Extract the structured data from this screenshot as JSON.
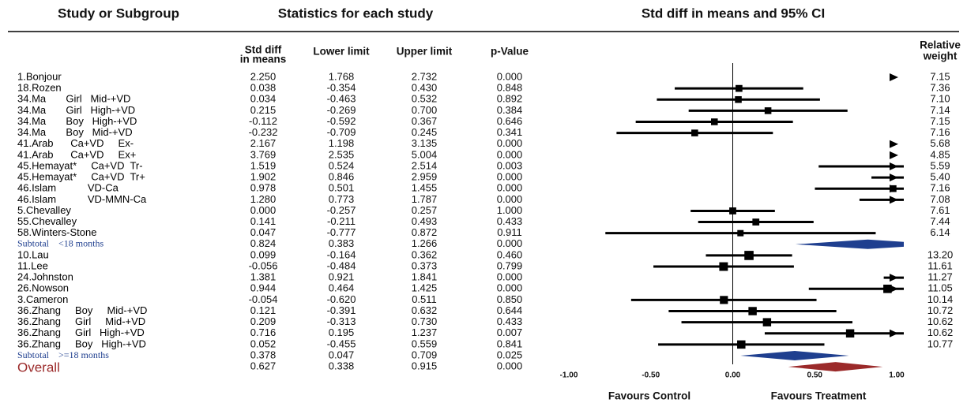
{
  "chart_data": {
    "type": "forest",
    "title_left": "Study or Subgroup",
    "title_middle": "Statistics for each study",
    "title_right": "Std diff in means and 95% CI",
    "column_headers": {
      "smd": [
        "Std diff",
        "in means"
      ],
      "lower": "Lower limit",
      "upper": "Upper limit",
      "p_value": "p-Value",
      "weight": [
        "Relative",
        "weight"
      ]
    },
    "categories": [
      "1.Bonjour",
      "18.Rozen",
      "34.Ma       Girl   Mid-+VD",
      "34.Ma       Girl   High-+VD",
      "34.Ma       Boy   High-+VD",
      "34.Ma       Boy   Mid-+VD",
      "41.Arab      Ca+VD     Ex-",
      "41.Arab      Ca+VD     Ex+",
      "45.Hemayat*     Ca+VD  Tr-",
      "45.Hemayat*     Ca+VD  Tr+",
      "46.Islam           VD-Ca",
      "46.Islam           VD-MMN-Ca",
      "5.Chevalley",
      "55.Chevalley",
      "58.Winters-Stone",
      "Subtotal    <18 months",
      "10.Lau",
      "11.Lee",
      "24.Johnston",
      "26.Nowson",
      "3.Cameron",
      "36.Zhang     Boy     Mid-+VD",
      "36.Zhang     Girl     Mid-+VD",
      "36.Zhang     Girl   High-+VD",
      "36.Zhang     Boy   High-+VD",
      "Subtotal    >=18 months",
      "Overall"
    ],
    "smd": {
      "values": [
        2.25,
        0.038,
        0.034,
        0.215,
        -0.112,
        -0.232,
        2.167,
        3.769,
        1.519,
        1.902,
        0.978,
        1.28,
        0.0,
        0.141,
        0.047,
        0.824,
        0.099,
        -0.056,
        1.381,
        0.944,
        -0.054,
        0.121,
        0.209,
        0.716,
        0.052,
        0.378,
        0.627
      ],
      "value_labels": [
        "2.250",
        "0.038",
        "0.034",
        "0.215",
        "-0.112",
        "-0.232",
        "2.167",
        "3.769",
        "1.519",
        "1.902",
        "0.978",
        "1.280",
        "0.000",
        "0.141",
        "0.047",
        "0.824",
        "0.099",
        "-0.056",
        "1.381",
        "0.944",
        "-0.054",
        "0.121",
        "0.209",
        "0.716",
        "0.052",
        "0.378",
        "0.627"
      ]
    },
    "lower": {
      "values": [
        1.768,
        -0.354,
        -0.463,
        -0.269,
        -0.592,
        -0.709,
        1.198,
        2.535,
        0.524,
        0.846,
        0.501,
        0.773,
        -0.257,
        -0.211,
        -0.777,
        0.383,
        -0.164,
        -0.484,
        0.921,
        0.464,
        -0.62,
        -0.391,
        -0.313,
        0.195,
        -0.455,
        0.047,
        0.338
      ],
      "value_labels": [
        "1.768",
        "-0.354",
        "-0.463",
        "-0.269",
        "-0.592",
        "-0.709",
        "1.198",
        "2.535",
        "0.524",
        "0.846",
        "0.501",
        "0.773",
        "-0.257",
        "-0.211",
        "-0.777",
        "0.383",
        "-0.164",
        "-0.484",
        "0.921",
        "0.464",
        "-0.620",
        "-0.391",
        "-0.313",
        "0.195",
        "-0.455",
        "0.047",
        "0.338"
      ]
    },
    "upper": {
      "values": [
        2.732,
        0.43,
        0.532,
        0.7,
        0.367,
        0.245,
        3.135,
        5.004,
        2.514,
        2.959,
        1.455,
        1.787,
        0.257,
        0.493,
        0.872,
        1.266,
        0.362,
        0.373,
        1.841,
        1.425,
        0.511,
        0.632,
        0.73,
        1.237,
        0.559,
        0.709,
        0.915
      ],
      "value_labels": [
        "2.732",
        "0.430",
        "0.532",
        "0.700",
        "0.367",
        "0.245",
        "3.135",
        "5.004",
        "2.514",
        "2.959",
        "1.455",
        "1.787",
        "0.257",
        "0.493",
        "0.872",
        "1.266",
        "0.362",
        "0.373",
        "1.841",
        "1.425",
        "0.511",
        "0.632",
        "0.730",
        "1.237",
        "0.559",
        "0.709",
        "0.915"
      ]
    },
    "p_value": {
      "values": [
        0.0,
        0.848,
        0.892,
        0.384,
        0.646,
        0.341,
        0.0,
        0.0,
        0.003,
        0.0,
        0.0,
        0.0,
        1.0,
        0.433,
        0.911,
        0.0,
        0.46,
        0.799,
        0.0,
        0.0,
        0.85,
        0.644,
        0.433,
        0.007,
        0.841,
        0.025,
        0.0
      ],
      "value_labels": [
        "0.000",
        "0.848",
        "0.892",
        "0.384",
        "0.646",
        "0.341",
        "0.000",
        "0.000",
        "0.003",
        "0.000",
        "0.000",
        "0.000",
        "1.000",
        "0.433",
        "0.911",
        "0.000",
        "0.460",
        "0.799",
        "0.000",
        "0.000",
        "0.850",
        "0.644",
        "0.433",
        "0.007",
        "0.841",
        "0.025",
        "0.000"
      ]
    },
    "weight": {
      "values": [
        7.15,
        7.36,
        7.1,
        7.14,
        7.15,
        7.16,
        5.68,
        4.85,
        5.59,
        5.4,
        7.16,
        7.08,
        7.61,
        7.44,
        6.14,
        null,
        13.2,
        11.61,
        11.27,
        11.05,
        10.14,
        10.72,
        10.62,
        10.62,
        10.77,
        null,
        null
      ],
      "value_labels": [
        "7.15",
        "7.36",
        "7.10",
        "7.14",
        "7.15",
        "7.16",
        "5.68",
        "4.85",
        "5.59",
        "5.40",
        "7.16",
        "7.08",
        "7.61",
        "7.44",
        "6.14",
        null,
        "13.20",
        "11.61",
        "11.27",
        "11.05",
        "10.14",
        "10.72",
        "10.62",
        "10.62",
        "10.77",
        null,
        null
      ]
    },
    "xlim": [
      -1,
      1
    ],
    "xticks": [
      {
        "value": -1,
        "label": "-1.00"
      },
      {
        "value": -0.5,
        "label": "-0.50"
      },
      {
        "value": 0,
        "label": "0.00"
      },
      {
        "value": 0.5,
        "label": "0.50"
      },
      {
        "value": 1,
        "label": "1.00"
      }
    ],
    "x_labels": {
      "left": "Favours Control",
      "right": "Favours Treatment"
    },
    "colors": {
      "study": "#000000",
      "subtotal": "#1f3f8f",
      "overall": "#9b2a2a"
    }
  }
}
